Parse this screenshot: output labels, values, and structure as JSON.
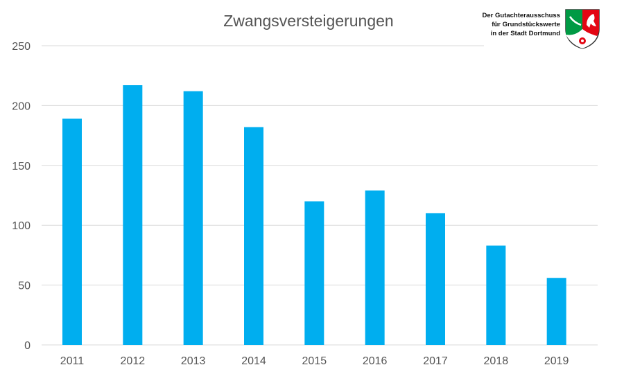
{
  "chart_data": {
    "type": "bar",
    "title": "Zwangsversteigerungen",
    "xlabel": "",
    "ylabel": "",
    "categories": [
      "2011",
      "2012",
      "2013",
      "2014",
      "2015",
      "2016",
      "2017",
      "2018",
      "2019"
    ],
    "values": [
      189,
      217,
      212,
      182,
      120,
      129,
      110,
      83,
      56
    ],
    "ylim": [
      0,
      250
    ],
    "yticks": [
      "0",
      "50",
      "100",
      "150",
      "200",
      "250"
    ],
    "grid": true,
    "legend": "none",
    "colors": {
      "bar": "#00aeef",
      "grid": "#d9d9d9",
      "text": "#555555"
    }
  },
  "logo": {
    "lines": [
      "Der Gutachterausschuss",
      "für Grundstückswerte",
      "in der Stadt Dortmund"
    ],
    "crest_icon": "nrw-coat-of-arms-icon"
  }
}
